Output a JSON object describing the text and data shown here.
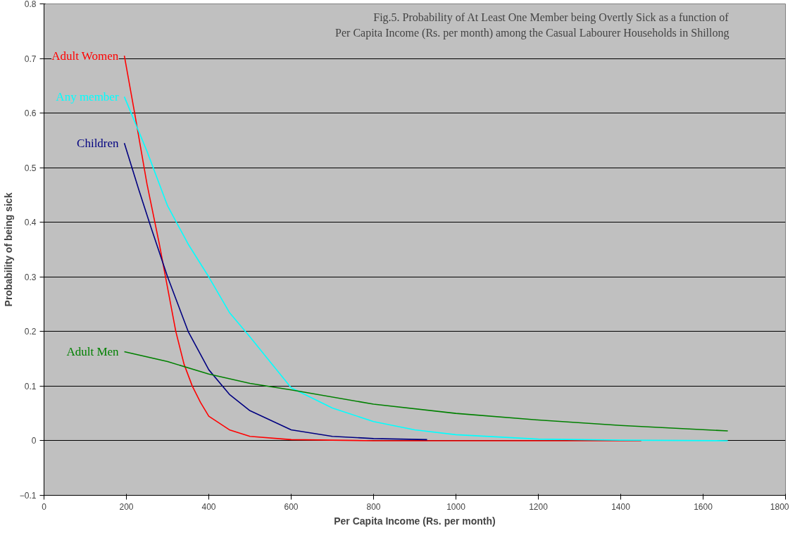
{
  "chart_data": {
    "type": "line",
    "title": "Fig.5. Probability of At Least One Member being Overtly Sick as a function of\nPer Capita Income (Rs. per month) among the Casual Labourer Households in Shillong",
    "xlabel": "Per Capita Income (Rs. per month)",
    "ylabel": "Probability of being sick",
    "xlim": [
      0,
      1800
    ],
    "ylim": [
      -0.1,
      0.8
    ],
    "xticks": [
      0,
      200,
      400,
      600,
      800,
      1000,
      1200,
      1400,
      1600,
      1800
    ],
    "yticks": [
      -0.1,
      0,
      0.1,
      0.2,
      0.3,
      0.4,
      0.5,
      0.6,
      0.7,
      0.8
    ],
    "grid": "y",
    "marker": "none",
    "line_style": "solid",
    "series": [
      {
        "name": "Adult Women",
        "color": "#ff0000",
        "x": [
          195,
          220,
          250,
          280,
          300,
          320,
          340,
          360,
          380,
          400,
          450,
          500,
          600,
          800,
          1450
        ],
        "values": [
          0.705,
          0.6,
          0.47,
          0.36,
          0.28,
          0.2,
          0.14,
          0.1,
          0.07,
          0.045,
          0.02,
          0.008,
          0.002,
          0.0,
          0.0
        ]
      },
      {
        "name": "Children",
        "color": "#000080",
        "x": [
          195,
          230,
          260,
          300,
          350,
          400,
          450,
          500,
          600,
          700,
          800,
          930
        ],
        "values": [
          0.545,
          0.46,
          0.39,
          0.3,
          0.2,
          0.13,
          0.085,
          0.055,
          0.02,
          0.008,
          0.004,
          0.002
        ]
      },
      {
        "name": "Any member",
        "color": "#00ffff",
        "x": [
          195,
          250,
          300,
          350,
          400,
          450,
          500,
          600,
          700,
          800,
          900,
          1000,
          1200,
          1400,
          1660
        ],
        "values": [
          0.63,
          0.53,
          0.43,
          0.36,
          0.3,
          0.235,
          0.19,
          0.097,
          0.06,
          0.035,
          0.02,
          0.011,
          0.003,
          0.001,
          0.0
        ]
      },
      {
        "name": "Adult Men",
        "color": "#008000",
        "x": [
          195,
          300,
          400,
          500,
          600,
          800,
          1000,
          1200,
          1400,
          1660
        ],
        "values": [
          0.163,
          0.145,
          0.122,
          0.105,
          0.093,
          0.067,
          0.05,
          0.038,
          0.028,
          0.018
        ]
      }
    ]
  }
}
